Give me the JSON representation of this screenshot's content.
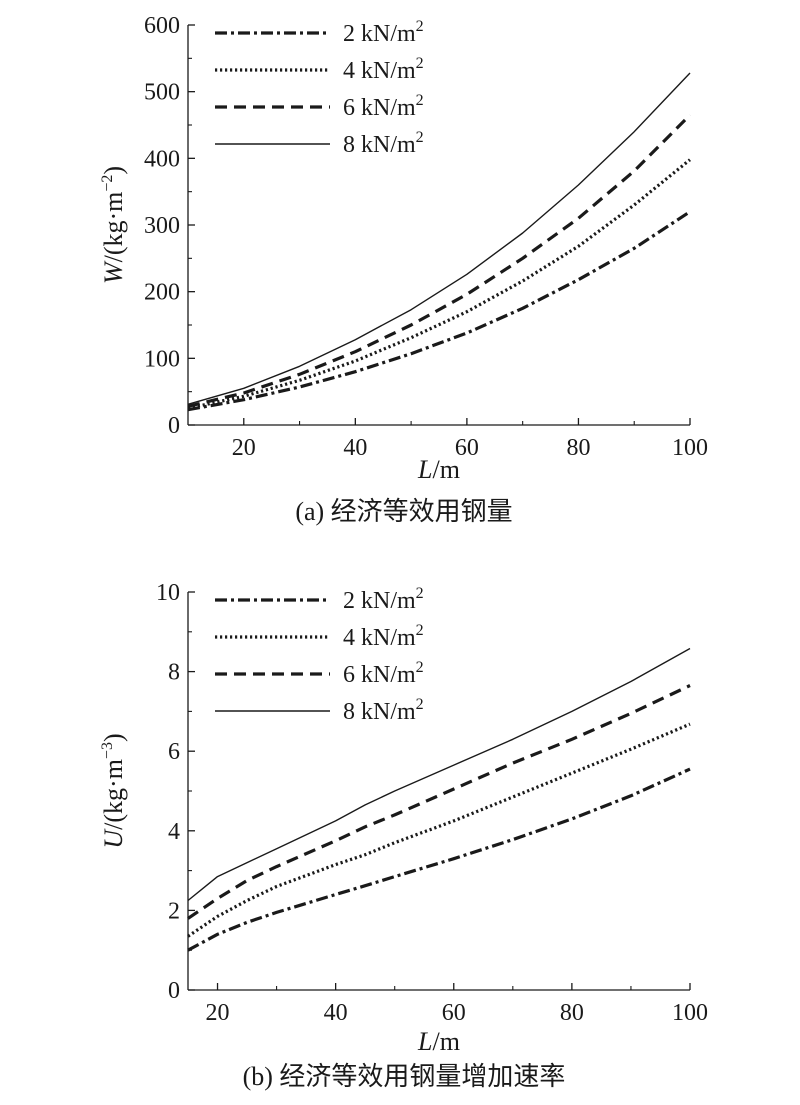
{
  "chart_data": [
    {
      "type": "line",
      "caption": "(a) 经济等效用钢量",
      "ylabel": {
        "italic": "W",
        "text": "/(kg·m",
        "sup": "−2",
        "close": ")"
      },
      "xlabel": {
        "italic": "L",
        "text": "/m"
      },
      "xlim": [
        10,
        100
      ],
      "ylim": [
        0,
        600
      ],
      "xticks": [
        20,
        40,
        60,
        80,
        100
      ],
      "yticks": [
        0,
        100,
        200,
        300,
        400,
        500,
        600
      ],
      "legend_position": "top-left",
      "x": [
        10,
        20,
        30,
        40,
        50,
        60,
        70,
        80,
        90,
        100
      ],
      "series": [
        {
          "name": "2 kN/m",
          "sup": "2",
          "style": "dashdot",
          "values": [
            23,
            38,
            57,
            80,
            107,
            138,
            175,
            218,
            265,
            320
          ]
        },
        {
          "name": "4 kN/m",
          "sup": "2",
          "style": "dotted",
          "values": [
            25,
            43,
            67,
            96,
            131,
            170,
            216,
            268,
            330,
            398
          ]
        },
        {
          "name": "6 kN/m",
          "sup": "2",
          "style": "dashed",
          "values": [
            28,
            48,
            76,
            110,
            150,
            196,
            250,
            310,
            381,
            465
          ]
        },
        {
          "name": "8 kN/m",
          "sup": "2",
          "style": "solid",
          "values": [
            31,
            55,
            88,
            128,
            173,
            226,
            288,
            360,
            440,
            528
          ]
        }
      ]
    },
    {
      "type": "line",
      "caption": "(b) 经济等效用钢量增加速率",
      "ylabel": {
        "italic": "U",
        "text": "/(kg·m",
        "sup": "−3",
        "close": ")"
      },
      "xlabel": {
        "italic": "L",
        "text": "/m"
      },
      "xlim": [
        15,
        100
      ],
      "ylim": [
        0,
        10
      ],
      "xticks": [
        20,
        40,
        60,
        80,
        100
      ],
      "yticks": [
        0,
        2,
        4,
        6,
        8,
        10
      ],
      "legend_position": "top-left",
      "x": [
        15,
        20,
        25,
        30,
        40,
        45,
        50,
        60,
        70,
        80,
        90,
        100
      ],
      "series": [
        {
          "name": "2 kN/m",
          "sup": "2",
          "style": "dashdot",
          "values": [
            1.0,
            1.4,
            1.7,
            1.95,
            2.4,
            2.62,
            2.85,
            3.3,
            3.78,
            4.3,
            4.88,
            5.55
          ]
        },
        {
          "name": "4 kN/m",
          "sup": "2",
          "style": "dotted",
          "values": [
            1.35,
            1.85,
            2.25,
            2.6,
            3.15,
            3.4,
            3.7,
            4.25,
            4.85,
            5.45,
            6.05,
            6.68
          ]
        },
        {
          "name": "6 kN/m",
          "sup": "2",
          "style": "dashed",
          "values": [
            1.8,
            2.3,
            2.75,
            3.1,
            3.75,
            4.1,
            4.4,
            5.05,
            5.7,
            6.3,
            6.95,
            7.65
          ]
        },
        {
          "name": "8 kN/m",
          "sup": "2",
          "style": "solid",
          "values": [
            2.25,
            2.85,
            3.2,
            3.55,
            4.25,
            4.65,
            5.0,
            5.65,
            6.3,
            7.0,
            7.75,
            8.58
          ]
        }
      ]
    }
  ]
}
